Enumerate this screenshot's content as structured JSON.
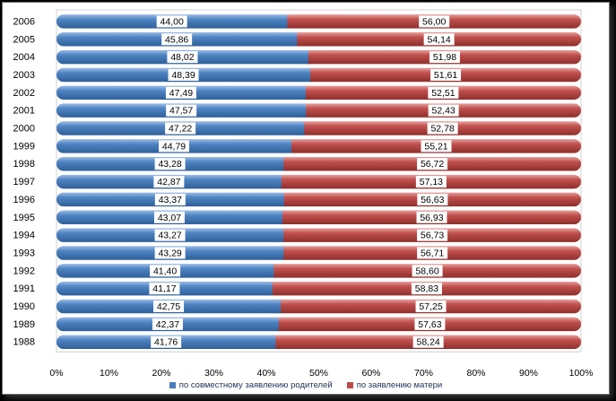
{
  "chart_data": {
    "type": "bar",
    "orientation": "horizontal",
    "stacked": "percent",
    "categories": [
      "2006",
      "2005",
      "2004",
      "2003",
      "2002",
      "2001",
      "2000",
      "1999",
      "1998",
      "1997",
      "1996",
      "1995",
      "1994",
      "1993",
      "1992",
      "1991",
      "1990",
      "1989",
      "1988"
    ],
    "series": [
      {
        "name": "по совместному заявлению родителей",
        "color": "#4a7ebb",
        "values": [
          44.0,
          45.86,
          48.02,
          48.39,
          47.49,
          47.57,
          47.22,
          44.79,
          43.28,
          42.87,
          43.37,
          43.07,
          43.27,
          43.29,
          41.4,
          41.17,
          42.75,
          42.37,
          41.76
        ],
        "labels": [
          "44,00",
          "45,86",
          "48,02",
          "48,39",
          "47,49",
          "47,57",
          "47,22",
          "44,79",
          "43,28",
          "42,87",
          "43,37",
          "43,07",
          "43,27",
          "43,29",
          "41,40",
          "41,17",
          "42,75",
          "42,37",
          "41,76"
        ]
      },
      {
        "name": "по заявлению матери",
        "color": "#be4b48",
        "values": [
          56.0,
          54.14,
          51.98,
          51.61,
          52.51,
          52.43,
          52.78,
          55.21,
          56.72,
          57.13,
          56.63,
          56.93,
          56.73,
          56.71,
          58.6,
          58.83,
          57.25,
          57.63,
          58.24
        ],
        "labels": [
          "56,00",
          "54,14",
          "51,98",
          "51,61",
          "52,51",
          "52,43",
          "52,78",
          "55,21",
          "56,72",
          "57,13",
          "56,63",
          "56,93",
          "56,73",
          "56,71",
          "58,60",
          "58,83",
          "57,25",
          "57,63",
          "58,24"
        ]
      }
    ],
    "xlim": [
      0,
      100
    ],
    "xticks": [
      "0%",
      "10%",
      "20%",
      "30%",
      "40%",
      "50%",
      "60%",
      "70%",
      "80%",
      "90%",
      "100%"
    ],
    "grid": false,
    "legend_position": "bottom"
  }
}
